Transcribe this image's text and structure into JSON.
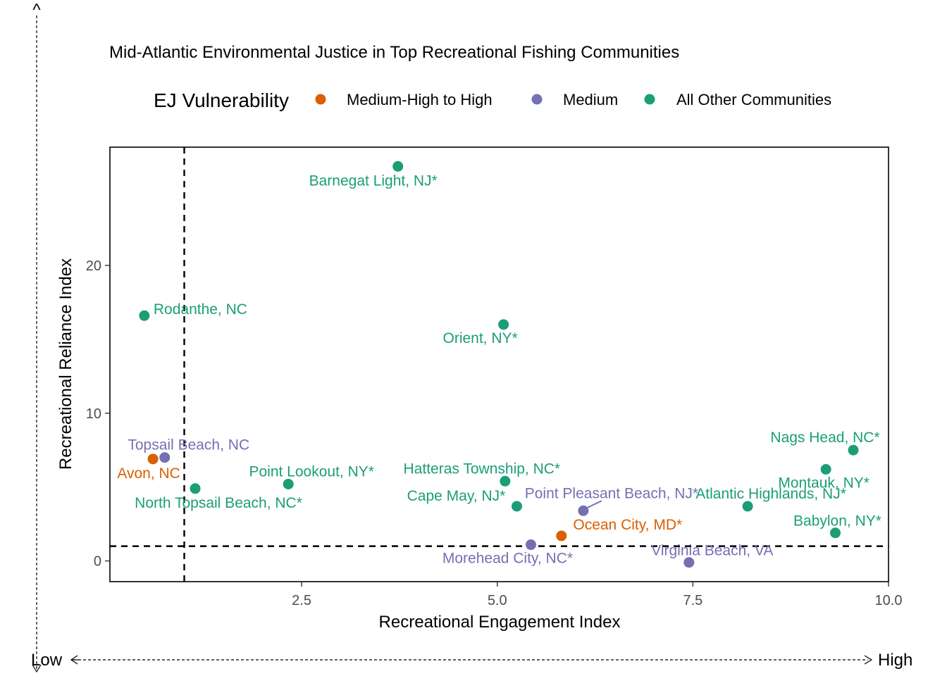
{
  "chart_data": {
    "type": "scatter",
    "title": "Mid-Atlantic Environmental Justice in Top Recreational Fishing Communities",
    "xlabel": "Recreational Engagement Index",
    "ylabel": "Recreational Reliance Index",
    "xlim": [
      0.05,
      10.0
    ],
    "ylim": [
      -1.4,
      28.0
    ],
    "x_ticks": [
      2.5,
      5.0,
      7.5,
      10.0
    ],
    "x_tick_labels": [
      "2.5",
      "5.0",
      "7.5",
      "10.0"
    ],
    "y_ticks": [
      0,
      10,
      20
    ],
    "y_tick_labels": [
      "0",
      "10",
      "20"
    ],
    "reference_lines": {
      "x": 1.0,
      "y": 1.0,
      "style": "dashed"
    },
    "grid": false,
    "legend": {
      "title": "EJ Vulnerability",
      "position": "top",
      "entries": [
        {
          "name": "Medium-High to High",
          "color": "#D95F02"
        },
        {
          "name": "Medium",
          "color": "#7570B3"
        },
        {
          "name": "All Other Communities",
          "color": "#1B9E77"
        }
      ]
    },
    "points": [
      {
        "label": "Barnegat Light, NJ*",
        "x": 3.73,
        "y": 26.7,
        "group": "All Other Communities"
      },
      {
        "label": "Rodanthe, NC",
        "x": 0.49,
        "y": 16.6,
        "group": "All Other Communities"
      },
      {
        "label": "Orient, NY*",
        "x": 5.08,
        "y": 16.0,
        "group": "All Other Communities"
      },
      {
        "label": "Topsail Beach, NC",
        "x": 0.75,
        "y": 7.0,
        "group": "Medium"
      },
      {
        "label": "Avon, NC",
        "x": 0.6,
        "y": 6.9,
        "group": "Medium-High to High"
      },
      {
        "label": "North Topsail Beach, NC*",
        "x": 1.14,
        "y": 4.9,
        "group": "All Other Communities"
      },
      {
        "label": "Point Lookout, NY*",
        "x": 2.33,
        "y": 5.2,
        "group": "All Other Communities"
      },
      {
        "label": "Hatteras Township, NC*",
        "x": 5.1,
        "y": 5.4,
        "group": "All Other Communities"
      },
      {
        "label": "Cape May, NJ*",
        "x": 5.25,
        "y": 3.7,
        "group": "All Other Communities"
      },
      {
        "label": "Point Pleasant Beach, NJ*",
        "x": 6.1,
        "y": 3.4,
        "group": "Medium"
      },
      {
        "label": "Ocean City, MD*",
        "x": 5.82,
        "y": 1.7,
        "group": "Medium-High to High"
      },
      {
        "label": "Morehead City, NC*",
        "x": 5.43,
        "y": 1.1,
        "group": "Medium"
      },
      {
        "label": "Virginia Beach, VA",
        "x": 7.45,
        "y": -0.1,
        "group": "Medium"
      },
      {
        "label": "Atlantic Highlands, NJ*",
        "x": 8.2,
        "y": 3.7,
        "group": "All Other Communities"
      },
      {
        "label": "Nags Head, NC*",
        "x": 9.55,
        "y": 7.5,
        "group": "All Other Communities"
      },
      {
        "label": "Montauk, NY*",
        "x": 9.2,
        "y": 6.2,
        "group": "All Other Communities"
      },
      {
        "label": "Babylon, NY*",
        "x": 9.32,
        "y": 1.9,
        "group": "All Other Communities"
      }
    ]
  },
  "corner_arrows": {
    "y_arrow_tip": "^",
    "x_low_label": "Low",
    "x_high_label": "High"
  }
}
